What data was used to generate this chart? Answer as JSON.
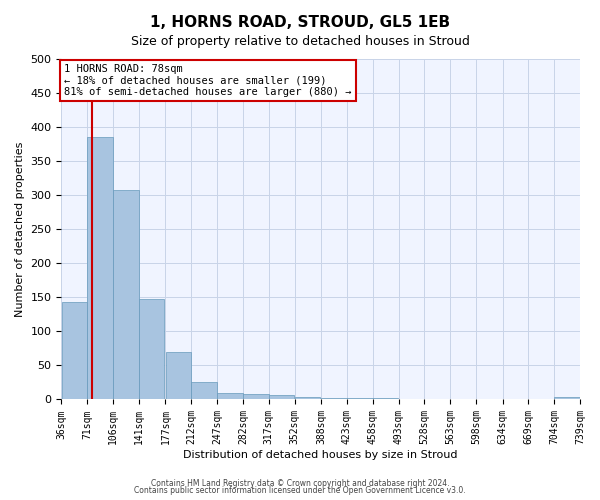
{
  "title": "1, HORNS ROAD, STROUD, GL5 1EB",
  "subtitle": "Size of property relative to detached houses in Stroud",
  "xlabel": "Distribution of detached houses by size in Stroud",
  "ylabel": "Number of detached properties",
  "bar_color": "#a8c4e0",
  "bar_edge_color": "#6699bb",
  "background_color": "#f0f4ff",
  "grid_color": "#c8d4e8",
  "bin_edges": [
    36,
    71,
    106,
    141,
    177,
    212,
    247,
    282,
    317,
    352,
    388,
    423,
    458,
    493,
    528,
    563,
    598,
    634,
    669,
    704,
    739
  ],
  "bin_labels": [
    "36sqm",
    "71sqm",
    "106sqm",
    "141sqm",
    "177sqm",
    "212sqm",
    "247sqm",
    "282sqm",
    "317sqm",
    "352sqm",
    "388sqm",
    "423sqm",
    "458sqm",
    "493sqm",
    "528sqm",
    "563sqm",
    "598sqm",
    "634sqm",
    "669sqm",
    "704sqm",
    "739sqm"
  ],
  "counts": [
    143,
    385,
    308,
    148,
    70,
    25,
    10,
    8,
    7,
    3,
    2,
    2,
    2,
    0,
    0,
    0,
    0,
    0,
    0,
    3,
    0
  ],
  "property_size": 78,
  "annotation_line1": "1 HORNS ROAD: 78sqm",
  "annotation_line2": "← 18% of detached houses are smaller (199)",
  "annotation_line3": "81% of semi-detached houses are larger (880) →",
  "vline_color": "#cc0000",
  "annotation_box_color": "#cc0000",
  "ylim": [
    0,
    500
  ],
  "footnote1": "Contains HM Land Registry data © Crown copyright and database right 2024.",
  "footnote2": "Contains public sector information licensed under the Open Government Licence v3.0."
}
